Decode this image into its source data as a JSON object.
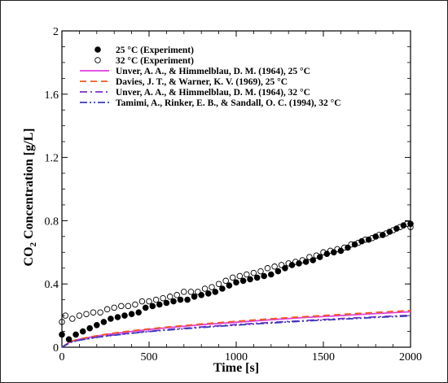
{
  "chart_data": {
    "type": "scatter",
    "xlabel": "Time [s]",
    "ylabel_main": "CO",
    "ylabel_sub": "2",
    "ylabel_rest": " Concentration [g/L]",
    "xlim": [
      0,
      2000
    ],
    "ylim": [
      0,
      2
    ],
    "xticks": [
      0,
      500,
      1000,
      1500,
      2000
    ],
    "yticks": [
      0,
      0.4,
      0.8,
      1.2,
      1.6,
      2
    ],
    "ytick_labels": [
      "0",
      "0.4",
      "0.8",
      "1.2",
      "1.6",
      "2"
    ],
    "grid": false,
    "legend_position": "top-left",
    "scatter_series": [
      {
        "name": "25 °C (Experiment)",
        "marker": "filled-circle",
        "color": "#000000",
        "x": [
          0,
          40,
          80,
          120,
          160,
          200,
          240,
          280,
          320,
          360,
          400,
          440,
          480,
          520,
          560,
          600,
          640,
          680,
          720,
          760,
          800,
          840,
          880,
          920,
          960,
          1000,
          1040,
          1080,
          1120,
          1160,
          1200,
          1240,
          1280,
          1320,
          1360,
          1400,
          1440,
          1480,
          1520,
          1560,
          1600,
          1640,
          1680,
          1720,
          1760,
          1800,
          1840,
          1880,
          1920,
          1960,
          2000
        ],
        "y": [
          0.08,
          0.05,
          0.08,
          0.1,
          0.12,
          0.14,
          0.16,
          0.18,
          0.19,
          0.2,
          0.21,
          0.22,
          0.25,
          0.26,
          0.27,
          0.28,
          0.29,
          0.3,
          0.3,
          0.32,
          0.33,
          0.34,
          0.35,
          0.37,
          0.39,
          0.41,
          0.42,
          0.43,
          0.44,
          0.45,
          0.46,
          0.48,
          0.5,
          0.52,
          0.53,
          0.54,
          0.55,
          0.57,
          0.59,
          0.6,
          0.61,
          0.63,
          0.65,
          0.67,
          0.68,
          0.7,
          0.71,
          0.73,
          0.75,
          0.77,
          0.78
        ]
      },
      {
        "name": "32 °C (Experiment)",
        "marker": "open-circle",
        "color": "#000000",
        "x": [
          0,
          20,
          60,
          100,
          140,
          180,
          220,
          260,
          300,
          340,
          380,
          420,
          460,
          500,
          540,
          580,
          620,
          660,
          700,
          740,
          780,
          820,
          860,
          900,
          940,
          980,
          1020,
          1060,
          1100,
          1140,
          1180,
          1220,
          1260,
          1300,
          1340,
          1380,
          1420,
          1460,
          1500,
          1540,
          1580,
          1620,
          1660,
          1700,
          1740,
          1780,
          1820,
          1860,
          1900,
          1940,
          1980,
          2000
        ],
        "y": [
          0.16,
          0.2,
          0.18,
          0.2,
          0.21,
          0.22,
          0.22,
          0.24,
          0.25,
          0.26,
          0.26,
          0.27,
          0.29,
          0.29,
          0.3,
          0.31,
          0.32,
          0.33,
          0.35,
          0.35,
          0.35,
          0.37,
          0.38,
          0.4,
          0.42,
          0.44,
          0.45,
          0.46,
          0.47,
          0.48,
          0.5,
          0.51,
          0.52,
          0.53,
          0.54,
          0.55,
          0.57,
          0.58,
          0.6,
          0.61,
          0.62,
          0.63,
          0.65,
          0.66,
          0.68,
          0.69,
          0.71,
          0.72,
          0.74,
          0.76,
          0.78,
          0.76
        ]
      }
    ],
    "line_series": [
      {
        "name": "Unver, A. A., & Himmelblau, D. M. (1964), 25 °C",
        "color": "#e040e0",
        "dash": "solid",
        "x": [
          0,
          50,
          100,
          200,
          300,
          400,
          500,
          600,
          800,
          1000,
          1200,
          1400,
          1600,
          1800,
          2000
        ],
        "y": [
          0,
          0.036,
          0.05,
          0.071,
          0.087,
          0.1,
          0.112,
          0.123,
          0.142,
          0.158,
          0.174,
          0.188,
          0.2,
          0.213,
          0.224
        ]
      },
      {
        "name": "Davies, J. T., & Warner, K. V. (1969), 25 °C",
        "color": "#f05a1e",
        "dash": "dashed",
        "x": [
          0,
          50,
          100,
          200,
          300,
          400,
          500,
          600,
          800,
          1000,
          1200,
          1400,
          1600,
          1800,
          2000
        ],
        "y": [
          0,
          0.037,
          0.052,
          0.073,
          0.09,
          0.104,
          0.116,
          0.127,
          0.147,
          0.164,
          0.18,
          0.194,
          0.207,
          0.22,
          0.232
        ]
      },
      {
        "name": "Unver, A. A., & Himmelblau, D. M. (1964), 32 °C",
        "color": "#7a2cc8",
        "dash": "dashdot",
        "x": [
          0,
          50,
          100,
          200,
          300,
          400,
          500,
          600,
          800,
          1000,
          1200,
          1400,
          1600,
          1800,
          2000
        ],
        "y": [
          0,
          0.032,
          0.045,
          0.064,
          0.078,
          0.09,
          0.101,
          0.111,
          0.128,
          0.143,
          0.157,
          0.169,
          0.181,
          0.192,
          0.202
        ]
      },
      {
        "name": "Tamimi, A., Rinker, E. B., & Sandall, O. C. (1994), 32 °C",
        "color": "#3a3ab8",
        "dash": "dashdotdot",
        "x": [
          0,
          50,
          100,
          200,
          300,
          400,
          500,
          600,
          800,
          1000,
          1200,
          1400,
          1600,
          1800,
          2000
        ],
        "y": [
          0,
          0.031,
          0.044,
          0.062,
          0.076,
          0.088,
          0.099,
          0.108,
          0.125,
          0.14,
          0.153,
          0.166,
          0.177,
          0.188,
          0.198
        ]
      }
    ]
  }
}
